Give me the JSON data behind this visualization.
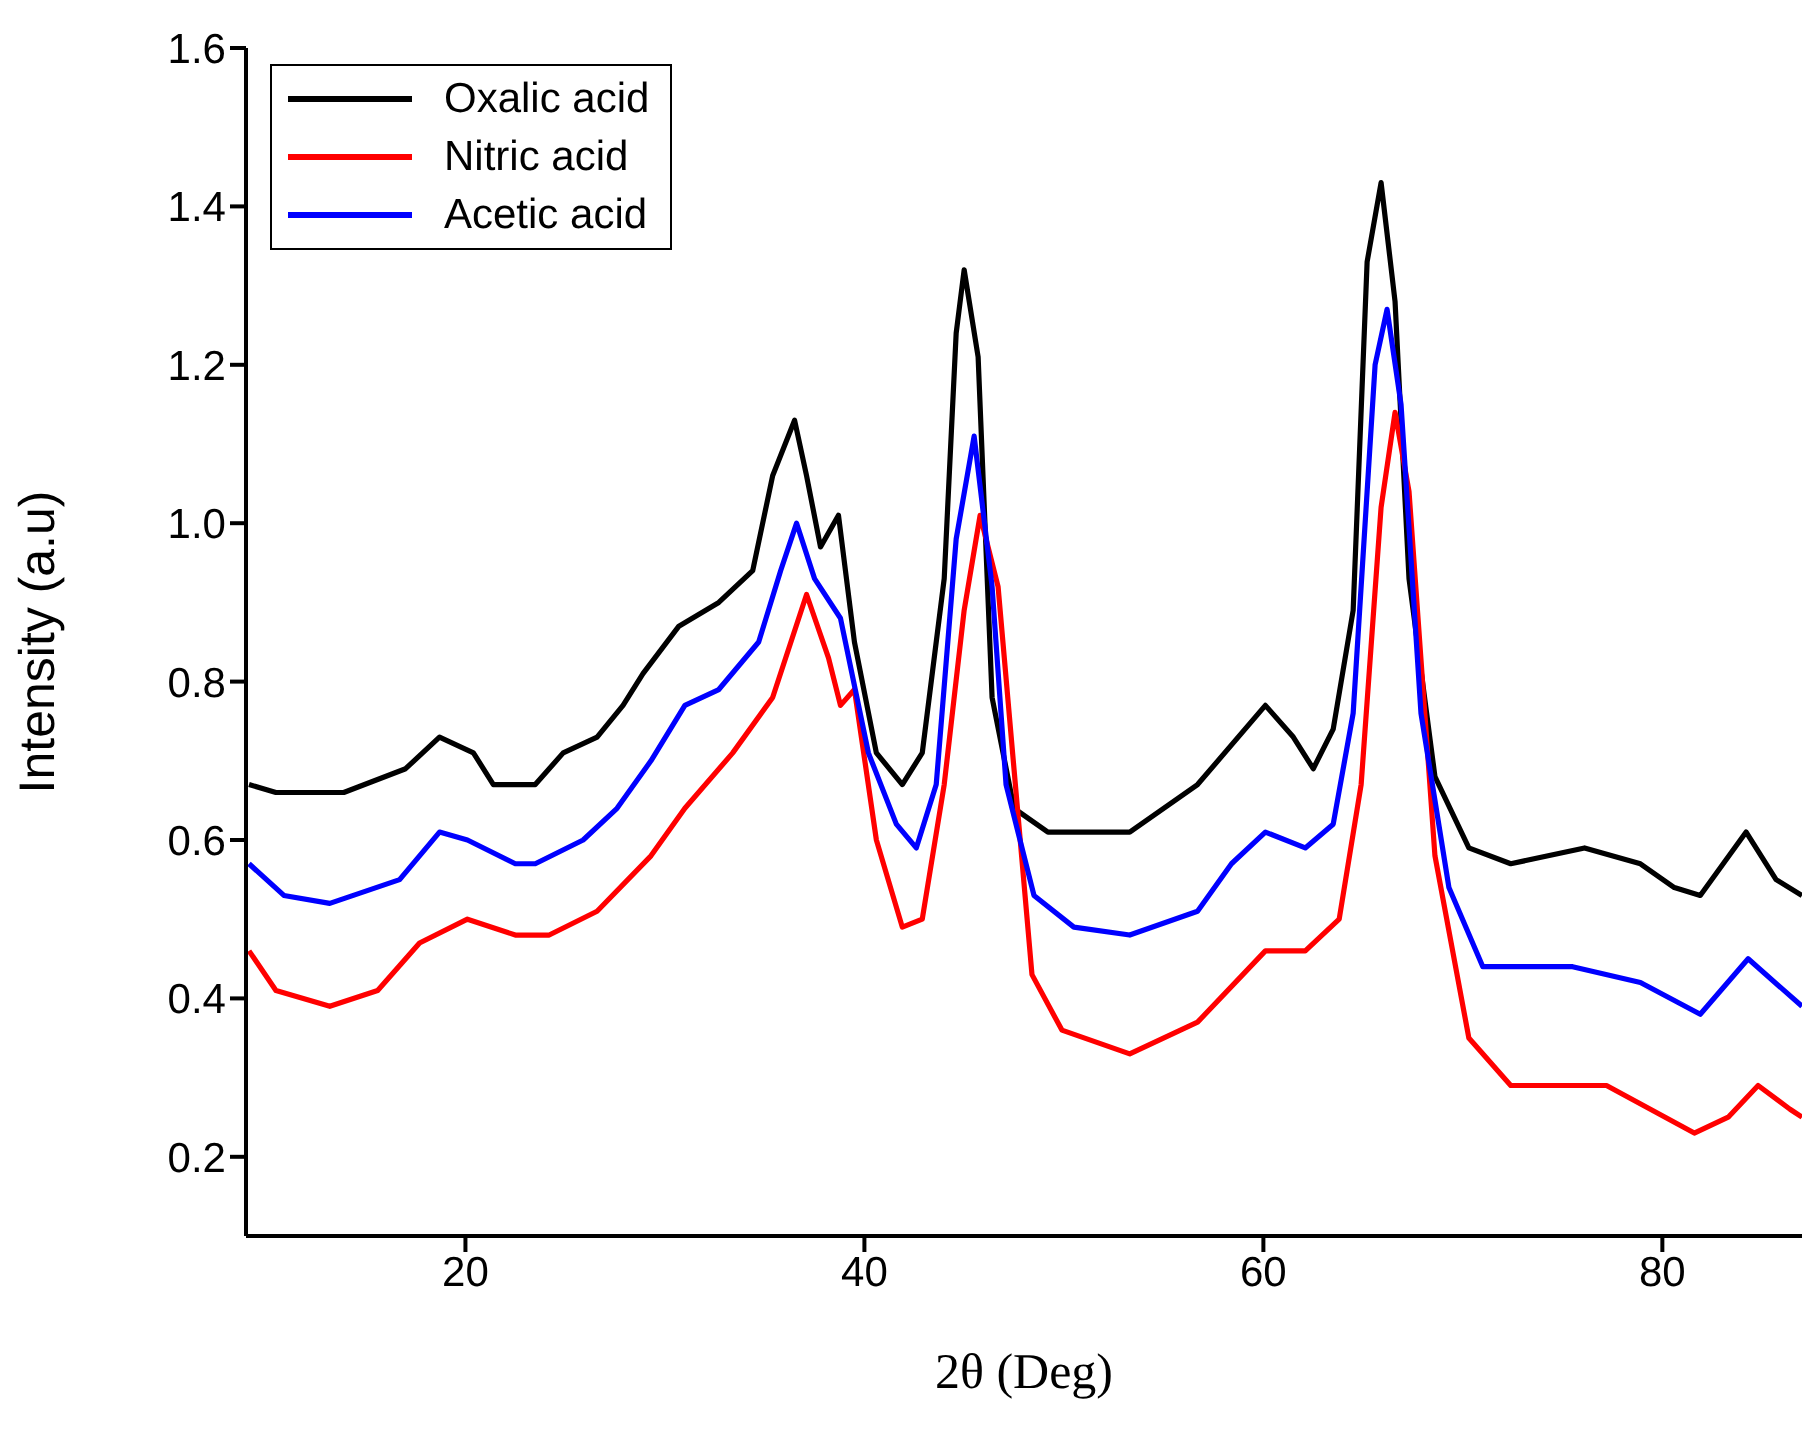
{
  "chart_data": {
    "type": "line",
    "xlabel": "2θ (Deg)",
    "ylabel": "Intensity (a.u)",
    "xlim": [
      9,
      87
    ],
    "xticks": [
      20,
      40,
      60,
      80
    ],
    "ylim": [
      0.1,
      1.6
    ],
    "yticks": [
      0.2,
      0.4,
      0.6,
      0.8,
      {
        "value": 1,
        "label": "1.0"
      },
      1.2,
      1.4,
      1.6
    ],
    "legend": "top left",
    "grid": false,
    "marker": "none",
    "line_style": "solid",
    "series": [
      {
        "name": "Oxalic acid",
        "color": "#000000",
        "x": [
          9.15,
          10.5,
          13.9,
          17.0,
          18.7,
          20.4,
          21.4,
          23.5,
          24.9,
          26.6,
          27.9,
          28.9,
          30.7,
          32.7,
          34.4,
          35.4,
          36.5,
          37.1,
          37.8,
          38.7,
          39.5,
          40.6,
          41.9,
          42.9,
          44.0,
          44.6,
          45.0,
          45.7,
          46.4,
          47.5,
          49.2,
          53.3,
          56.7,
          60.1,
          61.5,
          62.5,
          63.5,
          64.5,
          65.2,
          65.9,
          66.6,
          67.3,
          68.6,
          70.3,
          72.4,
          76.1,
          78.9,
          80.6,
          81.9,
          84.2,
          85.7,
          87.0
        ],
        "values": [
          0.67,
          0.66,
          0.66,
          0.69,
          0.73,
          0.71,
          0.67,
          0.67,
          0.71,
          0.73,
          0.77,
          0.81,
          0.87,
          0.9,
          0.94,
          1.06,
          1.13,
          1.06,
          0.97,
          1.01,
          0.85,
          0.71,
          0.67,
          0.71,
          0.93,
          1.24,
          1.32,
          1.21,
          0.78,
          0.64,
          0.61,
          0.61,
          0.67,
          0.77,
          0.73,
          0.69,
          0.74,
          0.89,
          1.33,
          1.43,
          1.28,
          0.93,
          0.68,
          0.59,
          0.57,
          0.59,
          0.57,
          0.54,
          0.53,
          0.61,
          0.55,
          0.53
        ]
      },
      {
        "name": "Nitric acid",
        "color": "#ff0000",
        "x": [
          9.15,
          10.5,
          13.2,
          15.6,
          17.7,
          20.1,
          22.5,
          24.2,
          26.6,
          29.3,
          31.0,
          33.4,
          35.4,
          37.1,
          38.2,
          38.8,
          39.5,
          40.6,
          41.9,
          42.9,
          44.0,
          45.0,
          45.8,
          46.7,
          48.4,
          49.9,
          53.3,
          56.7,
          60.1,
          62.1,
          63.8,
          64.9,
          65.9,
          66.6,
          67.3,
          68.6,
          70.3,
          72.4,
          77.2,
          81.6,
          83.3,
          84.8,
          86.4,
          87.0
        ],
        "values": [
          0.46,
          0.41,
          0.39,
          0.41,
          0.47,
          0.5,
          0.48,
          0.48,
          0.51,
          0.58,
          0.64,
          0.71,
          0.78,
          0.91,
          0.83,
          0.77,
          0.79,
          0.6,
          0.49,
          0.5,
          0.67,
          0.89,
          1.01,
          0.92,
          0.43,
          0.36,
          0.33,
          0.37,
          0.46,
          0.46,
          0.5,
          0.67,
          1.02,
          1.14,
          1.04,
          0.58,
          0.35,
          0.29,
          0.29,
          0.23,
          0.25,
          0.29,
          0.26,
          0.25
        ]
      },
      {
        "name": "Acetic acid",
        "color": "#0000ff",
        "x": [
          9.15,
          10.9,
          13.2,
          16.7,
          18.7,
          20.1,
          22.5,
          23.5,
          25.9,
          27.6,
          29.3,
          31.0,
          32.7,
          34.7,
          35.8,
          36.6,
          37.5,
          38.8,
          40.2,
          41.6,
          42.6,
          43.6,
          44.6,
          45.5,
          46.4,
          47.1,
          48.5,
          50.5,
          53.3,
          56.7,
          58.4,
          60.1,
          62.1,
          63.5,
          64.5,
          65.6,
          66.2,
          66.9,
          67.9,
          69.3,
          71.0,
          75.5,
          78.9,
          81.9,
          84.3,
          87.0
        ],
        "values": [
          0.57,
          0.53,
          0.52,
          0.55,
          0.61,
          0.6,
          0.57,
          0.57,
          0.6,
          0.64,
          0.7,
          0.77,
          0.79,
          0.85,
          0.94,
          1.0,
          0.93,
          0.88,
          0.71,
          0.62,
          0.59,
          0.67,
          0.98,
          1.11,
          0.92,
          0.67,
          0.53,
          0.49,
          0.48,
          0.51,
          0.57,
          0.61,
          0.59,
          0.62,
          0.76,
          1.2,
          1.27,
          1.15,
          0.76,
          0.54,
          0.44,
          0.44,
          0.42,
          0.38,
          0.45,
          0.39
        ]
      }
    ]
  }
}
